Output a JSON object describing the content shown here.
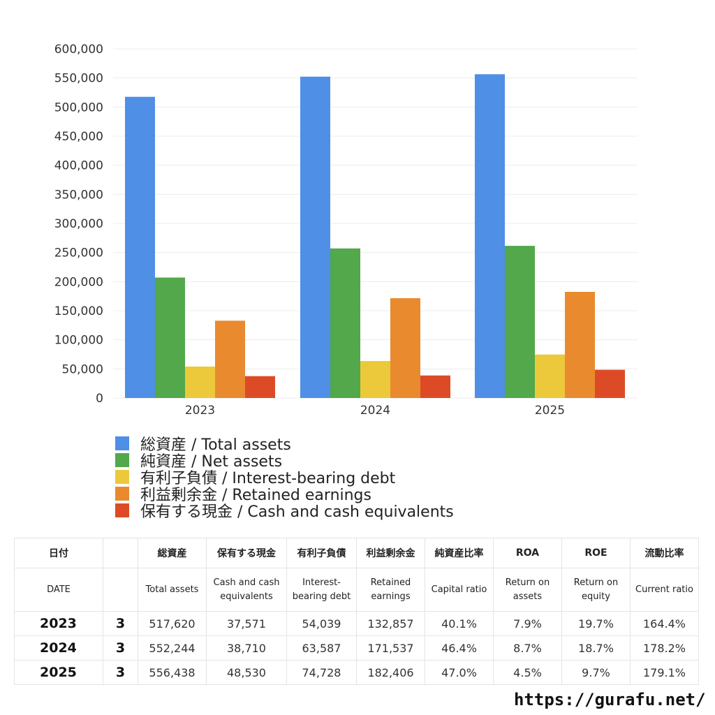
{
  "chart_data": {
    "type": "bar",
    "categories": [
      "2023",
      "2024",
      "2025"
    ],
    "series": [
      {
        "name": "総資産 / Total assets",
        "values": [
          517620,
          552244,
          556438
        ],
        "color": "#4f8fe6"
      },
      {
        "name": "純資産 / Net assets",
        "values": [
          207000,
          257000,
          261500
        ],
        "color": "#52a84a"
      },
      {
        "name": "有利子負債 / Interest-bearing debt",
        "values": [
          54039,
          63587,
          74728
        ],
        "color": "#ecc93a"
      },
      {
        "name": "利益剰余金 / Retained earnings",
        "values": [
          132857,
          171537,
          182406
        ],
        "color": "#e98a2f"
      },
      {
        "name": "保有する現金 /  Cash and cash equivalents",
        "values": [
          37571,
          38710,
          48530
        ],
        "color": "#dd4b26"
      }
    ],
    "ylim": [
      0,
      600000
    ],
    "yticks": [
      "0",
      "50,000",
      "100,000",
      "150,000",
      "200,000",
      "250,000",
      "300,000",
      "350,000",
      "400,000",
      "450,000",
      "500,000",
      "550,000",
      "600,000"
    ],
    "grid": true,
    "legend_position": "bottom"
  },
  "table": {
    "header_jp": [
      "日付",
      "",
      "総資産",
      "保有する現金",
      "有利子負債",
      "利益剰余金",
      "純資産比率",
      "ROA",
      "ROE",
      "流動比率"
    ],
    "header_en": [
      "DATE",
      "",
      "Total assets",
      "Cash and cash equivalents",
      "Interest-bearing debt",
      "Retained earnings",
      "Capital ratio",
      "Return on assets",
      "Return on equity",
      "Current ratio"
    ],
    "rows": [
      [
        "2023",
        "3",
        "517,620",
        "37,571",
        "54,039",
        "132,857",
        "40.1%",
        "7.9%",
        "19.7%",
        "164.4%"
      ],
      [
        "2024",
        "3",
        "552,244",
        "38,710",
        "63,587",
        "171,537",
        "46.4%",
        "8.7%",
        "18.7%",
        "178.2%"
      ],
      [
        "2025",
        "3",
        "556,438",
        "48,530",
        "74,728",
        "182,406",
        "47.0%",
        "4.5%",
        "9.7%",
        "179.1%"
      ]
    ]
  },
  "footer": {
    "url": "https://gurafu.net/"
  }
}
